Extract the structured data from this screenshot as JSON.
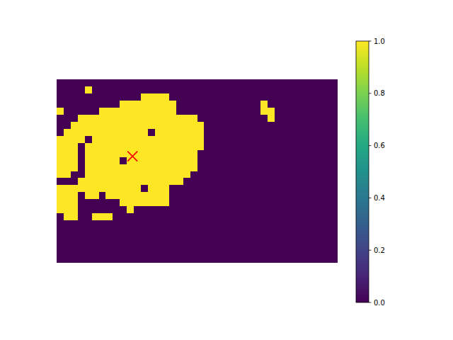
{
  "chart_data": {
    "type": "heatmap",
    "xlim": [
      0,
      40
    ],
    "ylim": [
      26,
      0
    ],
    "tick_labels": false,
    "cells": [
      [
        0,
        0,
        0,
        0,
        0,
        0,
        0,
        0,
        0,
        0,
        0,
        0,
        0,
        0,
        0,
        0,
        0,
        0,
        0,
        0,
        0,
        0,
        0,
        0,
        0,
        0,
        0,
        0,
        0,
        0,
        0,
        0,
        0,
        0,
        0,
        0,
        0,
        0,
        0,
        0
      ],
      [
        0,
        0,
        0,
        0,
        1,
        0,
        0,
        0,
        0,
        0,
        0,
        0,
        0,
        0,
        0,
        0,
        0,
        0,
        0,
        0,
        0,
        0,
        0,
        0,
        0,
        0,
        0,
        0,
        0,
        0,
        0,
        0,
        0,
        0,
        0,
        0,
        0,
        0,
        0,
        0
      ],
      [
        0,
        0,
        0,
        0,
        0,
        0,
        0,
        0,
        0,
        0,
        0,
        0,
        1,
        1,
        1,
        1,
        0,
        0,
        0,
        0,
        0,
        0,
        0,
        0,
        0,
        0,
        0,
        0,
        0,
        0,
        0,
        0,
        0,
        0,
        0,
        0,
        0,
        0,
        0,
        0
      ],
      [
        0,
        0,
        0,
        0,
        0,
        0,
        0,
        0,
        0,
        1,
        1,
        1,
        1,
        1,
        1,
        1,
        1,
        0,
        0,
        0,
        0,
        0,
        0,
        0,
        0,
        0,
        0,
        0,
        0,
        1,
        0,
        0,
        0,
        0,
        0,
        0,
        0,
        0,
        0,
        0
      ],
      [
        1,
        0,
        0,
        0,
        0,
        0,
        1,
        1,
        1,
        1,
        1,
        1,
        1,
        1,
        1,
        1,
        1,
        0,
        0,
        0,
        0,
        0,
        0,
        0,
        0,
        0,
        0,
        0,
        0,
        1,
        1,
        0,
        0,
        0,
        0,
        0,
        0,
        0,
        0,
        0
      ],
      [
        0,
        0,
        0,
        1,
        1,
        1,
        1,
        1,
        1,
        1,
        1,
        1,
        1,
        1,
        1,
        1,
        1,
        1,
        1,
        1,
        0,
        0,
        0,
        0,
        0,
        0,
        0,
        0,
        0,
        0,
        1,
        0,
        0,
        0,
        0,
        0,
        0,
        0,
        0,
        0
      ],
      [
        0,
        0,
        1,
        1,
        1,
        1,
        1,
        1,
        1,
        1,
        1,
        1,
        1,
        1,
        1,
        1,
        1,
        1,
        1,
        1,
        1,
        0,
        0,
        0,
        0,
        0,
        0,
        0,
        0,
        0,
        0,
        0,
        0,
        0,
        0,
        0,
        0,
        0,
        0,
        0
      ],
      [
        0,
        1,
        1,
        1,
        1,
        1,
        1,
        1,
        1,
        1,
        1,
        1,
        1,
        0,
        1,
        1,
        1,
        1,
        1,
        1,
        1,
        0,
        0,
        0,
        0,
        0,
        0,
        0,
        0,
        0,
        0,
        0,
        0,
        0,
        0,
        0,
        0,
        0,
        0,
        0
      ],
      [
        1,
        1,
        1,
        1,
        0,
        1,
        1,
        1,
        1,
        1,
        1,
        1,
        1,
        1,
        1,
        1,
        1,
        1,
        1,
        1,
        1,
        0,
        0,
        0,
        0,
        0,
        0,
        0,
        0,
        0,
        0,
        0,
        0,
        0,
        0,
        0,
        0,
        0,
        0,
        0
      ],
      [
        1,
        1,
        1,
        0,
        1,
        1,
        1,
        1,
        1,
        1,
        1,
        1,
        1,
        1,
        1,
        1,
        1,
        1,
        1,
        1,
        1,
        0,
        0,
        0,
        0,
        0,
        0,
        0,
        0,
        0,
        0,
        0,
        0,
        0,
        0,
        0,
        0,
        0,
        0,
        0
      ],
      [
        1,
        1,
        1,
        0,
        1,
        1,
        1,
        1,
        1,
        1,
        1,
        1,
        1,
        1,
        1,
        1,
        1,
        1,
        1,
        1,
        0,
        0,
        0,
        0,
        0,
        0,
        0,
        0,
        0,
        0,
        0,
        0,
        0,
        0,
        0,
        0,
        0,
        0,
        0,
        0
      ],
      [
        1,
        1,
        1,
        0,
        1,
        1,
        1,
        1,
        1,
        0,
        1,
        1,
        1,
        1,
        1,
        1,
        1,
        1,
        1,
        1,
        0,
        0,
        0,
        0,
        0,
        0,
        0,
        0,
        0,
        0,
        0,
        0,
        0,
        0,
        0,
        0,
        0,
        0,
        0,
        0
      ],
      [
        1,
        1,
        1,
        0,
        1,
        1,
        1,
        1,
        1,
        1,
        1,
        1,
        1,
        1,
        1,
        1,
        1,
        1,
        1,
        1,
        0,
        0,
        0,
        0,
        0,
        0,
        0,
        0,
        0,
        0,
        0,
        0,
        0,
        0,
        0,
        0,
        0,
        0,
        0,
        0
      ],
      [
        1,
        1,
        0,
        0,
        1,
        1,
        1,
        1,
        1,
        1,
        1,
        1,
        1,
        1,
        1,
        1,
        1,
        1,
        1,
        0,
        0,
        0,
        0,
        0,
        0,
        0,
        0,
        0,
        0,
        0,
        0,
        0,
        0,
        0,
        0,
        0,
        0,
        0,
        0,
        0
      ],
      [
        0,
        0,
        0,
        1,
        1,
        1,
        1,
        1,
        1,
        1,
        1,
        1,
        1,
        1,
        1,
        1,
        1,
        1,
        0,
        0,
        0,
        0,
        0,
        0,
        0,
        0,
        0,
        0,
        0,
        0,
        0,
        0,
        0,
        0,
        0,
        0,
        0,
        0,
        0,
        0
      ],
      [
        1,
        1,
        1,
        1,
        1,
        1,
        1,
        1,
        1,
        1,
        1,
        1,
        0,
        1,
        1,
        1,
        0,
        0,
        0,
        0,
        0,
        0,
        0,
        0,
        0,
        0,
        0,
        0,
        0,
        0,
        0,
        0,
        0,
        0,
        0,
        0,
        0,
        0,
        0,
        0
      ],
      [
        1,
        1,
        1,
        0,
        1,
        1,
        0,
        1,
        1,
        1,
        1,
        1,
        1,
        1,
        1,
        1,
        0,
        0,
        0,
        0,
        0,
        0,
        0,
        0,
        0,
        0,
        0,
        0,
        0,
        0,
        0,
        0,
        0,
        0,
        0,
        0,
        0,
        0,
        0,
        0
      ],
      [
        1,
        1,
        1,
        0,
        0,
        0,
        0,
        0,
        0,
        1,
        1,
        1,
        1,
        1,
        1,
        1,
        0,
        0,
        0,
        0,
        0,
        0,
        0,
        0,
        0,
        0,
        0,
        0,
        0,
        0,
        0,
        0,
        0,
        0,
        0,
        0,
        0,
        0,
        0,
        0
      ],
      [
        1,
        1,
        1,
        0,
        0,
        0,
        0,
        0,
        0,
        0,
        1,
        0,
        0,
        0,
        0,
        0,
        0,
        0,
        0,
        0,
        0,
        0,
        0,
        0,
        0,
        0,
        0,
        0,
        0,
        0,
        0,
        0,
        0,
        0,
        0,
        0,
        0,
        0,
        0,
        0
      ],
      [
        0,
        1,
        1,
        0,
        0,
        1,
        1,
        1,
        0,
        0,
        0,
        0,
        0,
        0,
        0,
        0,
        0,
        0,
        0,
        0,
        0,
        0,
        0,
        0,
        0,
        0,
        0,
        0,
        0,
        0,
        0,
        0,
        0,
        0,
        0,
        0,
        0,
        0,
        0,
        0
      ],
      [
        0,
        0,
        0,
        0,
        0,
        0,
        0,
        0,
        0,
        0,
        0,
        0,
        0,
        0,
        0,
        0,
        0,
        0,
        0,
        0,
        0,
        0,
        0,
        0,
        0,
        0,
        0,
        0,
        0,
        0,
        0,
        0,
        0,
        0,
        0,
        0,
        0,
        0,
        0,
        0
      ],
      [
        0,
        0,
        0,
        0,
        0,
        0,
        0,
        0,
        0,
        0,
        0,
        0,
        0,
        0,
        0,
        0,
        0,
        0,
        0,
        0,
        0,
        0,
        0,
        0,
        0,
        0,
        0,
        0,
        0,
        0,
        0,
        0,
        0,
        0,
        0,
        0,
        0,
        0,
        0,
        0
      ],
      [
        0,
        0,
        0,
        0,
        0,
        0,
        0,
        0,
        0,
        0,
        0,
        0,
        0,
        0,
        0,
        0,
        0,
        0,
        0,
        0,
        0,
        0,
        0,
        0,
        0,
        0,
        0,
        0,
        0,
        0,
        0,
        0,
        0,
        0,
        0,
        0,
        0,
        0,
        0,
        0
      ],
      [
        0,
        0,
        0,
        0,
        0,
        0,
        0,
        0,
        0,
        0,
        0,
        0,
        0,
        0,
        0,
        0,
        0,
        0,
        0,
        0,
        0,
        0,
        0,
        0,
        0,
        0,
        0,
        0,
        0,
        0,
        0,
        0,
        0,
        0,
        0,
        0,
        0,
        0,
        0,
        0
      ],
      [
        0,
        0,
        0,
        0,
        0,
        0,
        0,
        0,
        0,
        0,
        0,
        0,
        0,
        0,
        0,
        0,
        0,
        0,
        0,
        0,
        0,
        0,
        0,
        0,
        0,
        0,
        0,
        0,
        0,
        0,
        0,
        0,
        0,
        0,
        0,
        0,
        0,
        0,
        0,
        0
      ],
      [
        0,
        0,
        0,
        0,
        0,
        0,
        0,
        0,
        0,
        0,
        0,
        0,
        0,
        0,
        0,
        0,
        0,
        0,
        0,
        0,
        0,
        0,
        0,
        0,
        0,
        0,
        0,
        0,
        0,
        0,
        0,
        0,
        0,
        0,
        0,
        0,
        0,
        0,
        0,
        0
      ]
    ],
    "colorbar": {
      "range": [
        0,
        1
      ],
      "ticks": [
        {
          "value": 0,
          "label": "0.0"
        },
        {
          "value": 0.2,
          "label": "0.2"
        },
        {
          "value": 0.4,
          "label": "0.4"
        },
        {
          "value": 0.6,
          "label": "0.6"
        },
        {
          "value": 0.8,
          "label": "0.8"
        },
        {
          "value": 1,
          "label": "1.0"
        }
      ]
    },
    "markers": [
      {
        "x": 10.8,
        "y": 10.9,
        "color": "red",
        "marker": "x"
      }
    ]
  }
}
